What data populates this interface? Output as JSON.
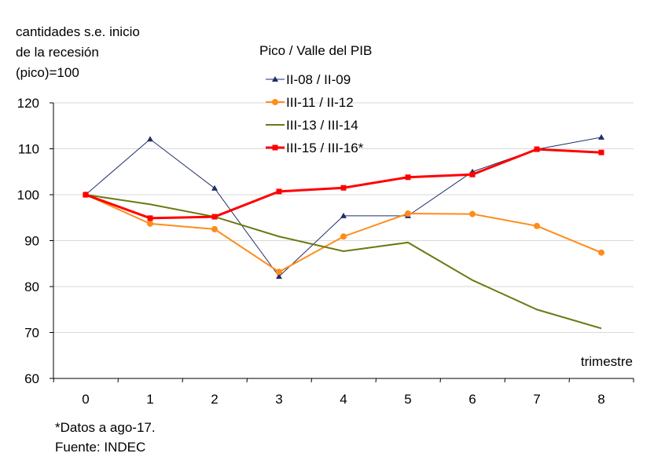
{
  "chart_data": {
    "type": "line",
    "ylabel": [
      "cantidades s.e. inicio",
      "de la recesión",
      "(pico)=100"
    ],
    "xlabel": "trimestre",
    "legend_title": "Pico / Valle del PIB",
    "legend_placement": "top-center",
    "x": [
      0,
      1,
      2,
      3,
      4,
      5,
      6,
      7,
      8
    ],
    "ylim": [
      60,
      120
    ],
    "yticks": [
      60,
      70,
      80,
      90,
      100,
      110,
      120
    ],
    "grid": true,
    "series": [
      {
        "name": "II-08 / II-09",
        "color": "#1f2d6b",
        "marker": "triangle",
        "values": [
          100,
          112.1,
          101.4,
          82.2,
          95.4,
          95.4,
          105.0,
          109.9,
          112.5
        ]
      },
      {
        "name": "III-11 / II-12",
        "color": "#ff8c1a",
        "marker": "circle",
        "values": [
          100,
          93.7,
          92.5,
          83.2,
          90.9,
          95.9,
          95.8,
          93.2,
          87.4
        ]
      },
      {
        "name": "III-13 / III-14",
        "color": "#6b7a12",
        "marker": "none",
        "values": [
          100,
          97.9,
          95.2,
          90.9,
          87.7,
          89.6,
          81.4,
          75.0,
          70.9
        ]
      },
      {
        "name": "III-15 / III-16*",
        "color": "#ff0000",
        "marker": "square",
        "values": [
          100,
          94.9,
          95.2,
          100.7,
          101.5,
          103.8,
          104.4,
          109.9,
          109.2
        ]
      }
    ]
  },
  "footnotes": {
    "note": "*Datos a ago-17.",
    "source": "Fuente: INDEC"
  }
}
